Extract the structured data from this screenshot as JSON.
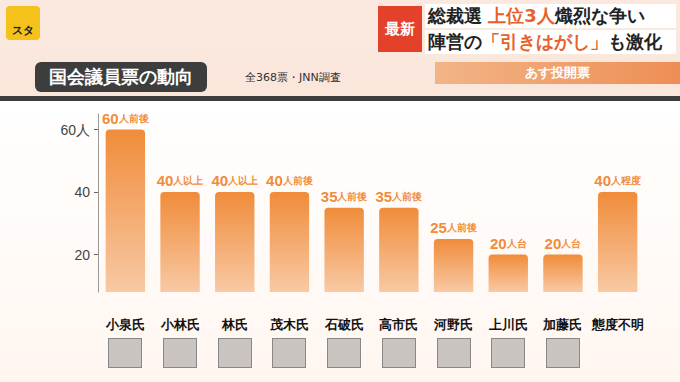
{
  "header": {
    "logo": "スタ",
    "badge": "最新",
    "headline": [
      [
        "総裁選 ",
        "上位3人",
        "熾烈な争い"
      ],
      [
        "陣営の",
        "「引きはがし」",
        "も激化"
      ]
    ],
    "band": "あす投開票"
  },
  "chart_data": {
    "type": "bar",
    "title": "国会議員票の動向",
    "subtitle": "全368票・JNN調査",
    "categories": [
      "小泉氏",
      "小林氏",
      "林氏",
      "茂木氏",
      "石破氏",
      "高市氏",
      "河野氏",
      "上川氏",
      "加藤氏",
      "態度不明"
    ],
    "values": [
      60,
      40,
      40,
      40,
      35,
      35,
      25,
      20,
      20,
      40
    ],
    "value_labels": [
      "60人前後",
      "40人以上",
      "40人以上",
      "40人前後",
      "35人前後",
      "35人前後",
      "25人前後",
      "20人台",
      "20人台",
      "40人程度"
    ],
    "color": "#f08c3a",
    "ylim": [
      8,
      65
    ],
    "yticks": [
      20,
      40,
      {
        "value": 60,
        "label": "60人"
      }
    ],
    "grid": false,
    "data_labels": true
  }
}
